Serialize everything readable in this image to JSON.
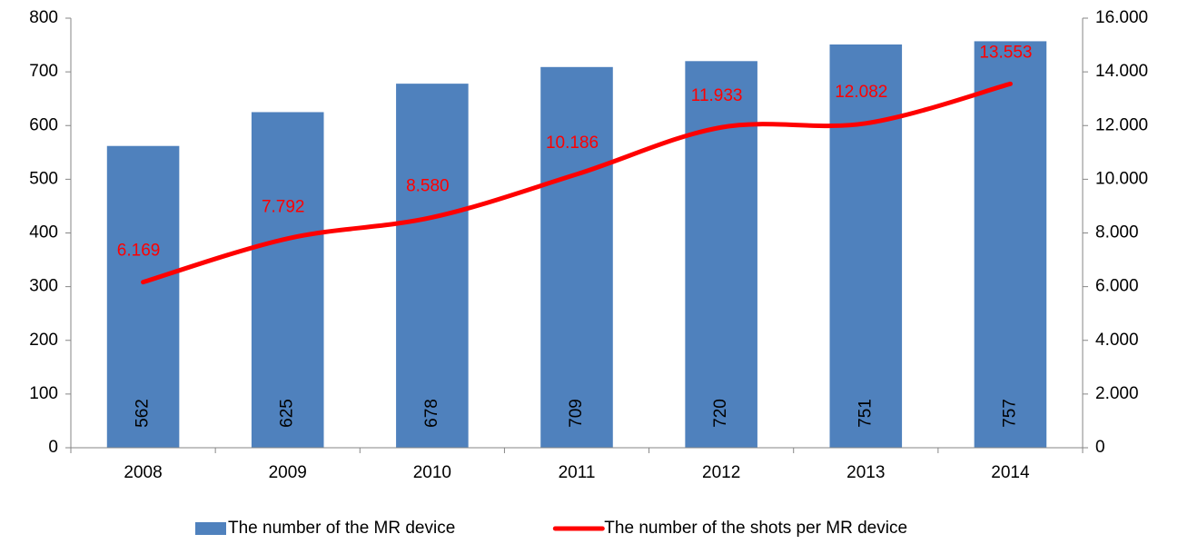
{
  "chart_data": {
    "type": "bar",
    "categories": [
      "2008",
      "2009",
      "2010",
      "2011",
      "2012",
      "2013",
      "2014"
    ],
    "series": [
      {
        "name": "The number of the MR device",
        "type": "bar",
        "color": "#4f81bd",
        "values": [
          562,
          625,
          678,
          709,
          720,
          751,
          757
        ]
      },
      {
        "name": "The number of the shots per MR device",
        "type": "line",
        "axis": "y2",
        "color": "#ff0000",
        "values": [
          6169,
          7792,
          8580,
          10186,
          11933,
          12082,
          13553
        ],
        "value_labels": [
          "6.169",
          "7.792",
          "8.580",
          "10.186",
          "11.933",
          "12.082",
          "13.553"
        ]
      }
    ],
    "ylim": [
      0,
      800
    ],
    "yticks": [
      0,
      100,
      200,
      300,
      400,
      500,
      600,
      700,
      800
    ],
    "y2lim": [
      0,
      16000
    ],
    "y2ticks": [
      0,
      {
        "value": 2000,
        "label": "2.000"
      },
      {
        "value": 4000,
        "label": "4.000"
      },
      {
        "value": 6000,
        "label": "6.000"
      },
      {
        "value": 8000,
        "label": "8.000"
      },
      {
        "value": 10000,
        "label": "10.000"
      },
      {
        "value": 12000,
        "label": "12.000"
      },
      {
        "value": 14000,
        "label": "14.000"
      },
      {
        "value": 16000,
        "label": "16.000"
      }
    ],
    "legend": "bottom"
  }
}
